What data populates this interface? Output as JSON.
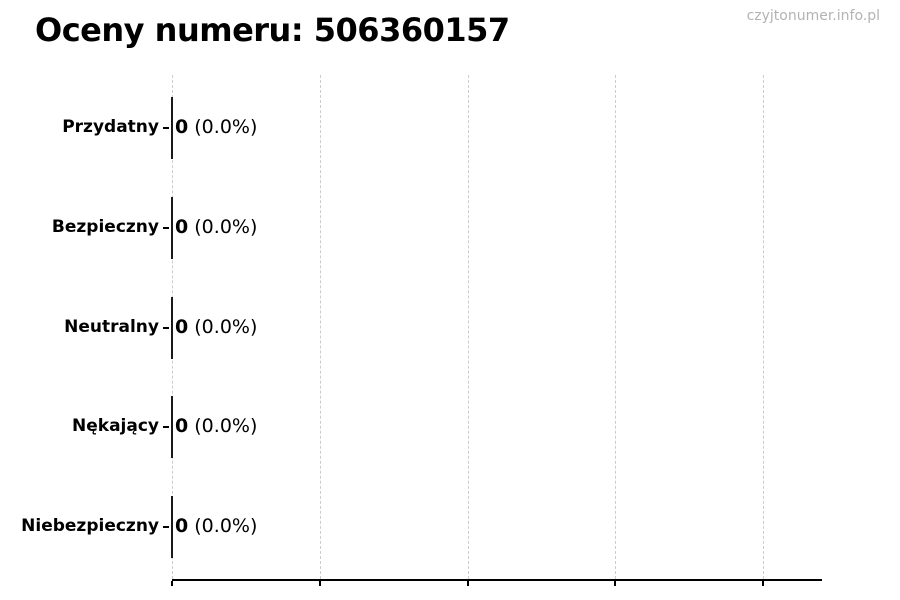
{
  "watermark": "czyjtonumer.info.pl",
  "chart_data": {
    "type": "bar",
    "orientation": "horizontal",
    "title": "Oceny numeru: 506360157",
    "categories": [
      "Przydatny",
      "Bezpieczny",
      "Neutralny",
      "Nękający",
      "Niebezpieczny"
    ],
    "values": [
      0,
      0,
      0,
      0,
      0
    ],
    "percents": [
      "0.0%",
      "0.0%",
      "0.0%",
      "0.0%",
      "0.0%"
    ],
    "annotations": [
      "0 (0.0%)",
      "0 (0.0%)",
      "0 (0.0%)",
      "0 (0.0%)",
      "0 (0.0%)"
    ],
    "xlabel": "",
    "ylabel": "",
    "x_tick_labels": [],
    "grid": true,
    "gridline_count": 5,
    "legend": null,
    "colors": {
      "background": "#ffffff",
      "text": "#000000",
      "axis": "#000000",
      "bar_edge": "#1a1a1a",
      "grid": "#cccccc",
      "watermark": "#b3b3b3"
    }
  }
}
